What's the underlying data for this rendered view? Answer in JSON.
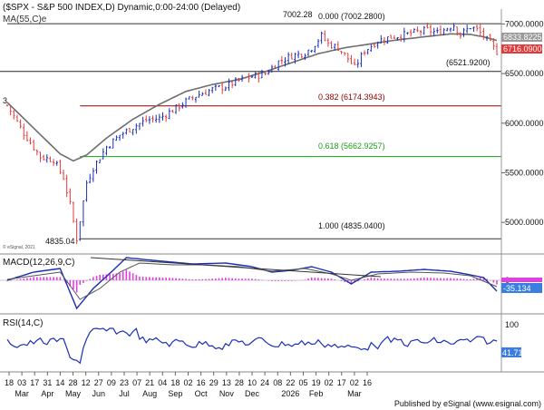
{
  "header": {
    "main_title": "($SPX - S&P 500 INDEX,D) Dynamic,0:00-24:00 (Delayed)",
    "ma_label": "MA(55,C)e",
    "edge_marker": "3",
    "watermark": "© eSignal, 2021",
    "footer": "Published by eSignal (www.esignal.com)"
  },
  "chart_data": {
    "type": "candlestick",
    "price_axis": {
      "min": 4700,
      "max": 7150,
      "ticks": [
        7000,
        6500,
        6000,
        5500,
        5000
      ],
      "tick_labels": [
        "7000.0000",
        "6500.0000",
        "6000.0000",
        "5500.0000",
        "5000.0000"
      ]
    },
    "x_axis": {
      "day_labels": [
        "18",
        "03",
        "17",
        "31",
        "14",
        "28",
        "12",
        "27",
        "09",
        "23",
        "07",
        "21",
        "04",
        "18",
        "02",
        "16",
        "29",
        "13",
        "28",
        "10",
        "24",
        "08",
        "22",
        "05",
        "19",
        "02",
        "17",
        "02",
        "16"
      ],
      "month_labels": [
        "Mar",
        "Apr",
        "May",
        "Jun",
        "Jul",
        "Aug",
        "Sep",
        "Oct",
        "Nov",
        "Dec",
        "2026",
        "Feb",
        "Mar"
      ]
    },
    "fibonacci": [
      {
        "ratio": "0.000",
        "value": "7002.2800",
        "label": "0.000 (7002.2800)",
        "price": 7002.28,
        "color": "#333333"
      },
      {
        "ratio": "0.382",
        "value": "6174.3943",
        "label": "0.382 (6174.3943)",
        "price": 6174.39,
        "color": "#8b0000"
      },
      {
        "ratio": "0.618",
        "value": "5662.9257",
        "label": "0.618 (5662.9257)",
        "price": 5662.93,
        "color": "#1a9e1a"
      },
      {
        "ratio": "1.000",
        "value": "4835.0400",
        "label": "1.000 (4835.0400)",
        "price": 4835.04,
        "color": "#333333"
      }
    ],
    "support_level": {
      "label": "(6521.9200)",
      "price": 6521.92
    },
    "annotations": {
      "high": "7002.28",
      "low": "4835.04"
    },
    "price_badges": {
      "ma": {
        "text": "6833.8225",
        "price": 6833.82,
        "color": "#9a9a9a"
      },
      "last": {
        "text": "6716.0900",
        "price": 6716.09,
        "color": "#e23a3a"
      }
    },
    "price_path": [
      [
        0,
        6180
      ],
      [
        5,
        5900
      ],
      [
        10,
        5660
      ],
      [
        14,
        5630
      ],
      [
        17,
        5450
      ],
      [
        19,
        5180
      ],
      [
        21,
        4835
      ],
      [
        24,
        5400
      ],
      [
        26,
        5550
      ],
      [
        30,
        5760
      ],
      [
        34,
        5880
      ],
      [
        38,
        5960
      ],
      [
        42,
        6030
      ],
      [
        46,
        6050
      ],
      [
        50,
        6130
      ],
      [
        54,
        6220
      ],
      [
        58,
        6290
      ],
      [
        62,
        6340
      ],
      [
        66,
        6370
      ],
      [
        70,
        6430
      ],
      [
        74,
        6470
      ],
      [
        78,
        6500
      ],
      [
        82,
        6620
      ],
      [
        86,
        6680
      ],
      [
        90,
        6710
      ],
      [
        92,
        6760
      ],
      [
        95,
        6880
      ],
      [
        97,
        6800
      ],
      [
        100,
        6760
      ],
      [
        103,
        6650
      ],
      [
        105,
        6560
      ],
      [
        108,
        6730
      ],
      [
        112,
        6830
      ],
      [
        116,
        6870
      ],
      [
        120,
        6890
      ],
      [
        124,
        6920
      ],
      [
        127,
        6940
      ],
      [
        130,
        6910
      ],
      [
        133,
        6960
      ],
      [
        135,
        6990
      ],
      [
        137,
        6890
      ],
      [
        140,
        6970
      ],
      [
        142,
        6940
      ],
      [
        144,
        6880
      ],
      [
        146,
        6800
      ],
      [
        148,
        6720
      ]
    ],
    "ma_path": [
      [
        0,
        6210
      ],
      [
        8,
        5950
      ],
      [
        16,
        5690
      ],
      [
        20,
        5620
      ],
      [
        24,
        5680
      ],
      [
        30,
        5850
      ],
      [
        38,
        6040
      ],
      [
        46,
        6190
      ],
      [
        54,
        6320
      ],
      [
        62,
        6390
      ],
      [
        70,
        6440
      ],
      [
        78,
        6520
      ],
      [
        86,
        6610
      ],
      [
        94,
        6700
      ],
      [
        102,
        6760
      ],
      [
        110,
        6800
      ],
      [
        118,
        6840
      ],
      [
        126,
        6870
      ],
      [
        134,
        6900
      ],
      [
        140,
        6895
      ],
      [
        144,
        6870
      ],
      [
        148,
        6834
      ]
    ],
    "macd": {
      "label": "MACD(12,26,9,C)",
      "axis_ticks": [
        0
      ],
      "value_badge": "-35.134",
      "trendline": [
        [
          34,
          71
        ],
        [
          148,
          3
        ]
      ]
    },
    "rsi": {
      "label": "RSI(14,C)",
      "axis_ticks": [
        100
      ],
      "axis_tick_labels": [
        "100"
      ],
      "value_badge": "41.71"
    }
  }
}
